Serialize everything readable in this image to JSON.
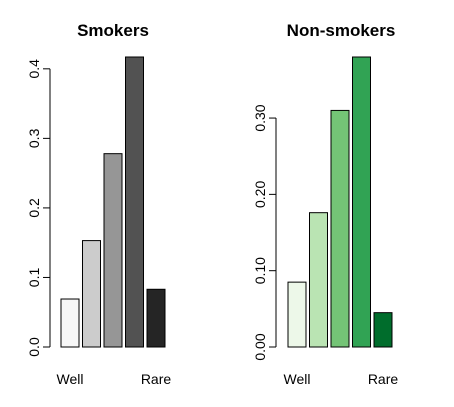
{
  "chart_data": [
    {
      "type": "bar",
      "title": "Smokers",
      "categories": [
        "Well",
        "",
        "",
        "",
        "Rare"
      ],
      "values": [
        0.069,
        0.153,
        0.278,
        0.417,
        0.083
      ],
      "colors": [
        "#f7f7f7",
        "#cccccc",
        "#969696",
        "#525252",
        "#252525"
      ],
      "yticks": [
        0.0,
        0.1,
        0.2,
        0.3,
        0.4
      ],
      "ytick_labels": [
        "0.0",
        "0.1",
        "0.2",
        "0.3",
        "0.4"
      ],
      "ylim": [
        0,
        0.417
      ],
      "grid": false,
      "legend": "none",
      "xlabel": "",
      "ylabel": ""
    },
    {
      "type": "bar",
      "title": "Non-smokers",
      "categories": [
        "Well",
        "",
        "",
        "",
        "Rare"
      ],
      "values": [
        0.085,
        0.176,
        0.31,
        0.38,
        0.045
      ],
      "colors": [
        "#edf8e9",
        "#bae4b3",
        "#74c476",
        "#31a354",
        "#006d2c"
      ],
      "yticks": [
        0.0,
        0.1,
        0.2,
        0.3
      ],
      "ytick_labels": [
        "0.00",
        "0.10",
        "0.20",
        "0.30"
      ],
      "ylim": [
        0,
        0.38
      ],
      "grid": false,
      "legend": "none",
      "xlabel": "",
      "ylabel": ""
    }
  ]
}
